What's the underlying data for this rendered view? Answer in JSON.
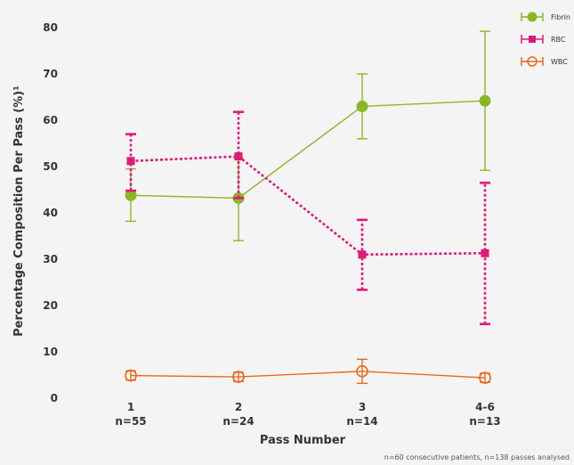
{
  "chart_data": {
    "type": "line",
    "categories": [
      "1",
      "2",
      "3",
      "4-6"
    ],
    "category_sublabels": [
      "n=55",
      "n=24",
      "n=14",
      "n=13"
    ],
    "xlabel": "Pass Number",
    "ylabel": "Percentage Composition Per Pass (%)¹",
    "ylim": [
      0,
      80
    ],
    "yticks": [
      0,
      10,
      20,
      30,
      40,
      50,
      60,
      70,
      80
    ],
    "grid": false,
    "legend_position": "top-right",
    "series": [
      {
        "name": "Fibrin",
        "color": "#8ab825",
        "marker": "circle-filled",
        "line_style": "solid",
        "values": [
          43.8,
          43.2,
          63.0,
          64.2
        ],
        "err_low": [
          38.2,
          34.0,
          56.0,
          49.2
        ],
        "err_high": [
          49.5,
          51.8,
          70.0,
          79.2
        ]
      },
      {
        "name": "RBC",
        "color": "#e0197a",
        "marker": "square-filled",
        "line_style": "dotted",
        "values": [
          51.2,
          52.2,
          31.0,
          31.3
        ],
        "err_low": [
          44.8,
          43.2,
          23.4,
          16.0
        ],
        "err_high": [
          57.0,
          61.8,
          38.5,
          46.5
        ]
      },
      {
        "name": "WBC",
        "color": "#e8691e",
        "marker": "circle-open",
        "line_style": "solid",
        "values": [
          4.9,
          4.6,
          5.8,
          4.4
        ],
        "err_low": [
          3.9,
          3.6,
          3.2,
          3.4
        ],
        "err_high": [
          5.9,
          5.6,
          8.4,
          5.4
        ]
      }
    ]
  },
  "footnote": "n=60 consecutive patients, n=138 passes analysed"
}
